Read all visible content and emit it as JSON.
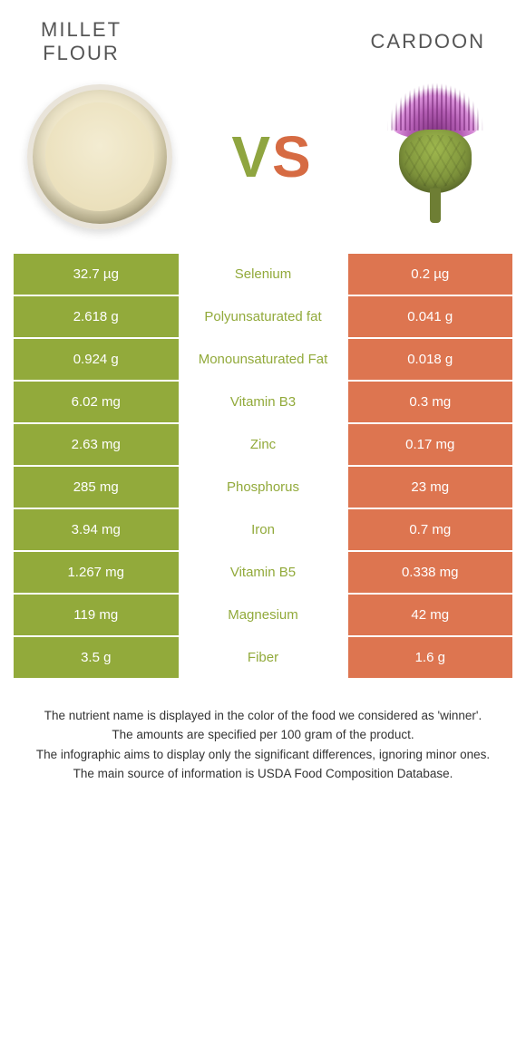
{
  "colors": {
    "left_bg": "#92aa3b",
    "right_bg": "#dd7550",
    "mid_text_left_winner": "#92aa3b",
    "mid_text_right_winner": "#dd7550"
  },
  "header": {
    "left_title_line1": "MILLET",
    "left_title_line2": "FLOUR",
    "right_title": "CARDOON"
  },
  "vs": {
    "v": "V",
    "s": "S"
  },
  "rows": [
    {
      "left": "32.7 µg",
      "label": "Selenium",
      "right": "0.2 µg",
      "winner": "left"
    },
    {
      "left": "2.618 g",
      "label": "Polyunsaturated fat",
      "right": "0.041 g",
      "winner": "left"
    },
    {
      "left": "0.924 g",
      "label": "Monounsaturated Fat",
      "right": "0.018 g",
      "winner": "left"
    },
    {
      "left": "6.02 mg",
      "label": "Vitamin B3",
      "right": "0.3 mg",
      "winner": "left"
    },
    {
      "left": "2.63 mg",
      "label": "Zinc",
      "right": "0.17 mg",
      "winner": "left"
    },
    {
      "left": "285 mg",
      "label": "Phosphorus",
      "right": "23 mg",
      "winner": "left"
    },
    {
      "left": "3.94 mg",
      "label": "Iron",
      "right": "0.7 mg",
      "winner": "left"
    },
    {
      "left": "1.267 mg",
      "label": "Vitamin B5",
      "right": "0.338 mg",
      "winner": "left"
    },
    {
      "left": "119 mg",
      "label": "Magnesium",
      "right": "42 mg",
      "winner": "left"
    },
    {
      "left": "3.5 g",
      "label": "Fiber",
      "right": "1.6 g",
      "winner": "left"
    }
  ],
  "footnotes": [
    "The nutrient name is displayed in the color of the food we considered as 'winner'.",
    "The amounts are specified per 100 gram of the product.",
    "The infographic aims to display only the significant differences, ignoring minor ones.",
    "The main source of information is USDA Food Composition Database."
  ]
}
